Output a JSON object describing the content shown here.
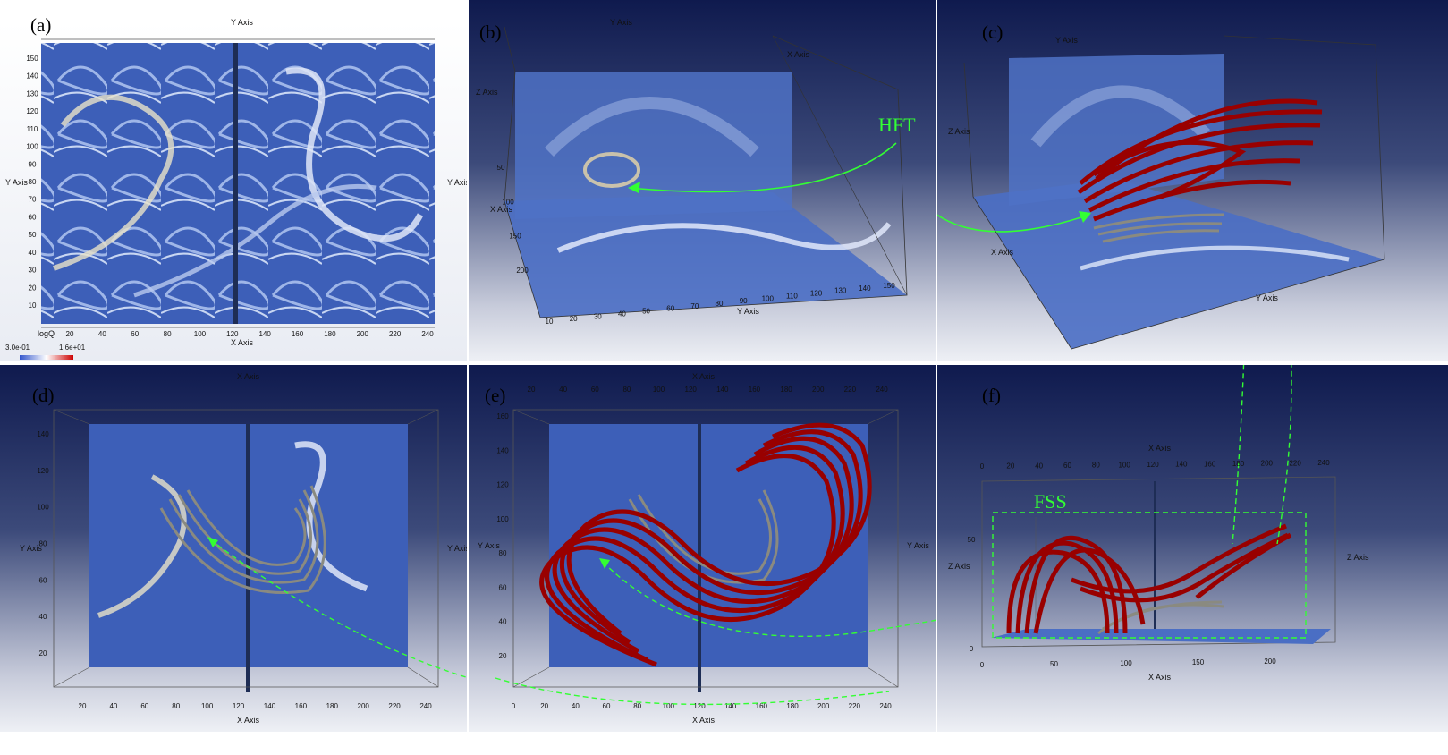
{
  "panels": {
    "a": {
      "label": "(a)"
    },
    "b": {
      "label": "(b)"
    },
    "c": {
      "label": "(c)"
    },
    "d": {
      "label": "(d)"
    },
    "e": {
      "label": "(e)"
    },
    "f": {
      "label": "(f)"
    }
  },
  "annotations": {
    "hft": "HFT",
    "fss": "FSS"
  },
  "axes": {
    "x_axis": "X Axis",
    "y_axis": "Y Axis",
    "z_axis": "Z Axis"
  },
  "colorbar": {
    "title": "logQ",
    "min": "3.0e-01",
    "max": "1.6e+01",
    "colors": [
      "#3355cc",
      "#ffffff",
      "#cc0000"
    ]
  },
  "ticks": {
    "a_x": [
      "20",
      "40",
      "60",
      "80",
      "100",
      "120",
      "140",
      "160",
      "180",
      "200",
      "220",
      "240"
    ],
    "a_y": [
      "10",
      "20",
      "30",
      "40",
      "50",
      "60",
      "70",
      "80",
      "90",
      "100",
      "110",
      "120",
      "130",
      "140",
      "150"
    ],
    "b_y": [
      "10",
      "20",
      "30",
      "40",
      "50",
      "60",
      "70",
      "80",
      "90",
      "100",
      "110",
      "120",
      "130",
      "140",
      "150"
    ],
    "b_x": [
      "50",
      "100",
      "150",
      "200"
    ],
    "de_x": [
      "20",
      "40",
      "60",
      "80",
      "100",
      "120",
      "140",
      "160",
      "180",
      "200",
      "220",
      "240"
    ],
    "e_xb": [
      "0",
      "20",
      "40",
      "60",
      "80",
      "100",
      "120",
      "140",
      "160",
      "180",
      "200",
      "220",
      "240"
    ],
    "de_y": [
      "20",
      "40",
      "60",
      "80",
      "100",
      "120",
      "140"
    ],
    "e_y": [
      "20",
      "40",
      "60",
      "80",
      "100",
      "120",
      "140",
      "160"
    ],
    "f_x": [
      "0",
      "20",
      "40",
      "60",
      "80",
      "100",
      "120",
      "140",
      "160",
      "180",
      "200",
      "220",
      "240"
    ],
    "f_xb": [
      "0",
      "50",
      "100",
      "150",
      "200"
    ],
    "f_z": [
      "0",
      "50"
    ]
  },
  "colors": {
    "hft_arrow": "#33ff33",
    "flux_rope": "#990000",
    "sheared_field": "#8a8a80",
    "slice": "#3c5fb5"
  }
}
